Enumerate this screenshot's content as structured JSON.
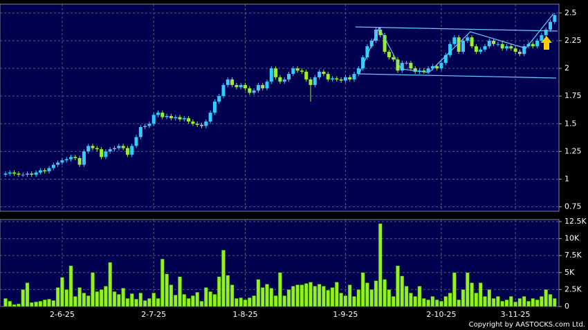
{
  "chart_data": {
    "type": "candlestick",
    "up_color": "#33ccff",
    "down_color": "#99ee33",
    "grid": true,
    "categories": [
      null,
      null,
      null,
      null,
      null,
      null,
      null,
      null,
      null,
      null,
      null,
      null,
      null,
      "2-6-25",
      null,
      null,
      null,
      null,
      null,
      null,
      null,
      null,
      null,
      null,
      null,
      null,
      null,
      null,
      null,
      null,
      null,
      null,
      null,
      null,
      "2-7-25",
      null,
      null,
      null,
      null,
      null,
      null,
      null,
      null,
      null,
      null,
      null,
      null,
      null,
      null,
      null,
      null,
      null,
      null,
      null,
      null,
      "1-8-25",
      null,
      null,
      null,
      null,
      null,
      null,
      null,
      null,
      null,
      null,
      null,
      null,
      null,
      null,
      null,
      null,
      null,
      null,
      null,
      null,
      null,
      null,
      "1-9-25",
      null,
      null,
      null,
      null,
      null,
      null,
      null,
      null,
      null,
      null,
      null,
      null,
      null,
      null,
      null,
      null,
      null,
      null,
      null,
      null,
      null,
      "2-10-25",
      null,
      null,
      null,
      null,
      null,
      null,
      null,
      null,
      null,
      null,
      null,
      null,
      null,
      null,
      null,
      null,
      "3-11-25",
      null,
      null,
      null,
      null,
      null,
      null,
      null,
      null,
      null
    ],
    "open": [
      1.04,
      1.05,
      1.06,
      1.05,
      1.04,
      1.04,
      1.05,
      1.04,
      1.06,
      1.08,
      1.07,
      1.1,
      1.13,
      1.15,
      1.17,
      1.18,
      1.2,
      1.19,
      1.13,
      1.25,
      1.3,
      1.28,
      1.27,
      1.2,
      1.25,
      1.27,
      1.28,
      1.3,
      1.28,
      1.22,
      1.3,
      1.38,
      1.47,
      1.48,
      1.5,
      1.58,
      1.6,
      1.56,
      1.57,
      1.55,
      1.56,
      1.54,
      1.55,
      1.52,
      1.5,
      1.49,
      1.48,
      1.52,
      1.6,
      1.7,
      1.75,
      1.85,
      1.9,
      1.85,
      1.83,
      1.85,
      1.82,
      1.78,
      1.8,
      1.85,
      1.82,
      1.88,
      2.0,
      1.92,
      1.88,
      1.9,
      1.95,
      2.0,
      1.98,
      1.97,
      1.9,
      1.85,
      1.92,
      1.97,
      1.95,
      1.9,
      1.91,
      1.9,
      1.89,
      1.92,
      1.9,
      1.95,
      2.0,
      2.1,
      2.2,
      2.25,
      2.35,
      2.3,
      2.15,
      2.1,
      2.08,
      1.98,
      2.05,
      2.05,
      2.0,
      1.97,
      1.98,
      1.97,
      2.0,
      2.02,
      2.0,
      2.05,
      2.12,
      2.22,
      2.28,
      2.15,
      2.25,
      2.28,
      2.2,
      2.15,
      2.17,
      2.2,
      2.25,
      2.22,
      2.22,
      2.18,
      2.2,
      2.18,
      2.15,
      2.13,
      2.2,
      2.22,
      2.2,
      2.25,
      2.3,
      2.35,
      2.42
    ],
    "high": [
      1.07,
      1.08,
      1.08,
      1.07,
      1.06,
      1.07,
      1.07,
      1.08,
      1.1,
      1.1,
      1.12,
      1.15,
      1.17,
      1.19,
      1.2,
      1.22,
      1.22,
      1.21,
      1.27,
      1.32,
      1.32,
      1.3,
      1.29,
      1.27,
      1.29,
      1.3,
      1.32,
      1.32,
      1.3,
      1.32,
      1.4,
      1.49,
      1.5,
      1.52,
      1.6,
      1.62,
      1.62,
      1.59,
      1.59,
      1.58,
      1.58,
      1.57,
      1.57,
      1.54,
      1.52,
      1.51,
      1.54,
      1.62,
      1.72,
      1.77,
      1.87,
      1.92,
      1.92,
      1.87,
      1.87,
      1.87,
      1.84,
      1.82,
      1.87,
      1.87,
      1.9,
      2.02,
      2.02,
      1.94,
      1.92,
      1.97,
      2.02,
      2.02,
      2.0,
      1.99,
      1.92,
      1.94,
      1.99,
      1.99,
      1.97,
      1.93,
      1.93,
      1.92,
      1.94,
      1.94,
      1.97,
      2.02,
      2.12,
      2.22,
      2.27,
      2.37,
      2.37,
      2.32,
      2.17,
      2.12,
      2.1,
      2.07,
      2.07,
      2.07,
      2.02,
      2.0,
      2.0,
      2.02,
      2.04,
      2.04,
      2.07,
      2.14,
      2.24,
      2.3,
      2.3,
      2.27,
      2.3,
      2.3,
      2.22,
      2.19,
      2.22,
      2.27,
      2.27,
      2.24,
      2.24,
      2.22,
      2.22,
      2.2,
      2.17,
      2.22,
      2.24,
      2.24,
      2.27,
      2.32,
      2.37,
      2.44,
      2.5
    ],
    "low": [
      1.02,
      1.03,
      1.03,
      1.02,
      1.02,
      1.02,
      1.02,
      1.02,
      1.04,
      1.05,
      1.05,
      1.08,
      1.11,
      1.13,
      1.15,
      1.16,
      1.17,
      1.11,
      1.11,
      1.23,
      1.26,
      1.25,
      1.18,
      1.18,
      1.23,
      1.25,
      1.26,
      1.26,
      1.2,
      1.2,
      1.28,
      1.36,
      1.45,
      1.46,
      1.48,
      1.56,
      1.54,
      1.54,
      1.53,
      1.53,
      1.52,
      1.52,
      1.5,
      1.48,
      1.47,
      1.46,
      1.46,
      1.5,
      1.58,
      1.68,
      1.73,
      1.83,
      1.83,
      1.81,
      1.81,
      1.8,
      1.76,
      1.76,
      1.78,
      1.8,
      1.8,
      1.86,
      1.9,
      1.86,
      1.86,
      1.88,
      1.93,
      1.96,
      1.95,
      1.88,
      1.7,
      1.83,
      1.9,
      1.93,
      1.88,
      1.88,
      1.88,
      1.87,
      1.87,
      1.88,
      1.88,
      1.93,
      1.98,
      2.08,
      2.18,
      2.23,
      2.28,
      2.13,
      2.08,
      2.06,
      1.96,
      1.96,
      2.03,
      1.98,
      1.95,
      1.95,
      1.95,
      1.95,
      1.98,
      1.98,
      1.98,
      2.03,
      2.1,
      2.2,
      2.13,
      2.13,
      2.23,
      2.18,
      2.13,
      2.13,
      2.15,
      2.18,
      2.2,
      2.2,
      2.16,
      2.16,
      2.16,
      2.13,
      2.11,
      2.11,
      2.18,
      2.18,
      2.18,
      2.23,
      2.28,
      2.33,
      2.4
    ],
    "close": [
      1.05,
      1.06,
      1.05,
      1.04,
      1.04,
      1.05,
      1.04,
      1.06,
      1.08,
      1.07,
      1.1,
      1.13,
      1.15,
      1.17,
      1.18,
      1.2,
      1.19,
      1.13,
      1.25,
      1.3,
      1.28,
      1.27,
      1.2,
      1.25,
      1.27,
      1.28,
      1.3,
      1.28,
      1.22,
      1.3,
      1.38,
      1.47,
      1.48,
      1.5,
      1.58,
      1.6,
      1.56,
      1.57,
      1.55,
      1.56,
      1.54,
      1.55,
      1.52,
      1.5,
      1.49,
      1.48,
      1.52,
      1.6,
      1.7,
      1.75,
      1.85,
      1.9,
      1.85,
      1.83,
      1.85,
      1.82,
      1.78,
      1.8,
      1.85,
      1.82,
      1.88,
      2.0,
      1.92,
      1.88,
      1.9,
      1.95,
      2.0,
      1.98,
      1.97,
      1.9,
      1.85,
      1.92,
      1.97,
      1.95,
      1.9,
      1.91,
      1.9,
      1.89,
      1.92,
      1.9,
      1.95,
      2.0,
      2.1,
      2.2,
      2.25,
      2.35,
      2.3,
      2.15,
      2.1,
      2.08,
      1.98,
      2.05,
      2.05,
      2.0,
      1.97,
      1.98,
      1.97,
      2.0,
      2.02,
      2.0,
      2.05,
      2.12,
      2.22,
      2.28,
      2.15,
      2.25,
      2.28,
      2.2,
      2.15,
      2.17,
      2.2,
      2.25,
      2.22,
      2.22,
      2.18,
      2.2,
      2.18,
      2.15,
      2.13,
      2.2,
      2.22,
      2.2,
      2.25,
      2.3,
      2.35,
      2.42,
      2.48
    ],
    "ylim": [
      0.71,
      2.58
    ],
    "yticks": [
      0.75,
      1,
      1.25,
      1.5,
      1.75,
      2,
      2.25,
      2.5
    ],
    "volume": {
      "color": "#99ee22",
      "ylim": [
        0,
        12.8
      ],
      "yticks": [
        0,
        {
          "value": 2.5,
          "label": "2.5K"
        },
        {
          "value": 5,
          "label": "5K"
        },
        {
          "value": 7.5,
          "label": "7.5K"
        },
        {
          "value": 10,
          "label": "10K"
        },
        {
          "value": 12.5,
          "label": "12.5K"
        }
      ],
      "values": [
        1.2,
        0.8,
        0.3,
        0.4,
        2.5,
        3.5,
        0.6,
        0.7,
        0.8,
        1.0,
        1.1,
        0.9,
        2.8,
        4.3,
        2.5,
        6.0,
        1.5,
        2.8,
        2.0,
        1.6,
        5.0,
        2.2,
        2.5,
        3.0,
        6.5,
        2.2,
        1.8,
        2.7,
        1.2,
        1.9,
        1.1,
        2.0,
        0.9,
        1.2,
        2.0,
        1.2,
        7.0,
        4.8,
        3.2,
        1.7,
        4.4,
        1.8,
        1.2,
        1.6,
        2.1,
        0.8,
        2.8,
        2.2,
        1.8,
        4.4,
        8.3,
        4.6,
        3.2,
        1.2,
        1.3,
        1.0,
        1.3,
        1.6,
        4.0,
        2.8,
        3.3,
        2.7,
        1.6,
        5.0,
        1.6,
        2.5,
        3.0,
        3.2,
        3.2,
        3.4,
        3.6,
        3.0,
        3.3,
        3.0,
        2.4,
        2.8,
        3.6,
        2.0,
        1.6,
        3.2,
        1.5,
        2.5,
        5.0,
        3.5,
        2.5,
        3.8,
        12.2,
        4.0,
        2.5,
        1.5,
        6.0,
        4.5,
        3.0,
        2.0,
        1.5,
        3.0,
        1.2,
        1.0,
        1.5,
        1.0,
        0.8,
        1.5,
        2.0,
        5.0,
        1.0,
        2.5,
        5.0,
        3.5,
        2.0,
        3.5,
        1.5,
        2.5,
        1.2,
        1.5,
        0.8,
        1.0,
        1.5,
        0.7,
        1.2,
        1.5,
        0.8,
        1.2,
        1.0,
        1.5,
        2.5,
        1.8,
        1.2
      ]
    },
    "copyright": "Copyright by AASTOCKS.com Ltd."
  }
}
